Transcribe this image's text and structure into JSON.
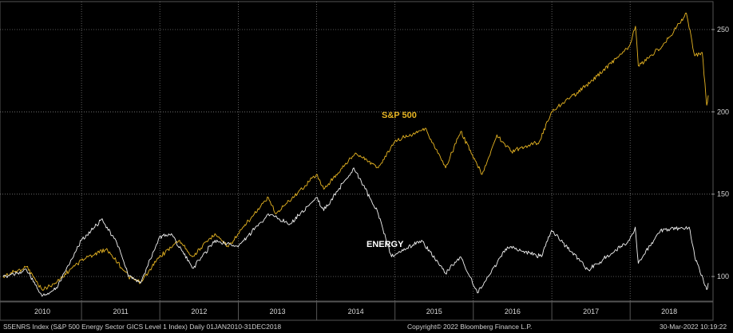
{
  "chart_data": {
    "type": "line",
    "title": "",
    "xlabel": "",
    "ylabel": "",
    "ylim": [
      86,
      266
    ],
    "y_ticks": [
      100,
      150,
      200,
      250
    ],
    "x_range": [
      "2010-01-01",
      "2018-12-31"
    ],
    "x_tick_labels": [
      "2010",
      "2011",
      "2012",
      "2013",
      "2014",
      "2015",
      "2016",
      "2017",
      "2018"
    ],
    "grid": true,
    "series": [
      {
        "name": "S&P 500",
        "color": "#e6b422",
        "points": [
          [
            "2010-01-01",
            100
          ],
          [
            "2010-04-20",
            106
          ],
          [
            "2010-07-01",
            92
          ],
          [
            "2010-09-01",
            96
          ],
          [
            "2010-12-31",
            110
          ],
          [
            "2011-04-29",
            117
          ],
          [
            "2011-08-08",
            100
          ],
          [
            "2011-10-03",
            96
          ],
          [
            "2011-12-30",
            112
          ],
          [
            "2012-04-02",
            122
          ],
          [
            "2012-06-01",
            112
          ],
          [
            "2012-09-14",
            126
          ],
          [
            "2012-11-15",
            118
          ],
          [
            "2012-12-31",
            126
          ],
          [
            "2013-05-21",
            148
          ],
          [
            "2013-06-24",
            138
          ],
          [
            "2013-12-31",
            162
          ],
          [
            "2014-02-03",
            153
          ],
          [
            "2014-06-30",
            175
          ],
          [
            "2014-10-15",
            166
          ],
          [
            "2014-12-31",
            182
          ],
          [
            "2015-05-21",
            190
          ],
          [
            "2015-08-25",
            166
          ],
          [
            "2015-11-03",
            188
          ],
          [
            "2016-02-11",
            162
          ],
          [
            "2016-04-20",
            186
          ],
          [
            "2016-06-27",
            176
          ],
          [
            "2016-11-04",
            182
          ],
          [
            "2016-12-30",
            200
          ],
          [
            "2017-06-30",
            218
          ],
          [
            "2017-12-29",
            240
          ],
          [
            "2018-01-26",
            252
          ],
          [
            "2018-02-08",
            228
          ],
          [
            "2018-06-01",
            240
          ],
          [
            "2018-09-20",
            260
          ],
          [
            "2018-10-29",
            234
          ],
          [
            "2018-12-03",
            236
          ],
          [
            "2018-12-24",
            204
          ],
          [
            "2018-12-31",
            210
          ]
        ]
      },
      {
        "name": "ENERGY",
        "color": "#f2f2f2",
        "points": [
          [
            "2010-01-01",
            100
          ],
          [
            "2010-04-20",
            104
          ],
          [
            "2010-07-01",
            88
          ],
          [
            "2010-09-01",
            92
          ],
          [
            "2010-12-31",
            122
          ],
          [
            "2011-04-08",
            135
          ],
          [
            "2011-06-24",
            118
          ],
          [
            "2011-08-08",
            100
          ],
          [
            "2011-10-03",
            96
          ],
          [
            "2011-12-30",
            124
          ],
          [
            "2012-02-24",
            126
          ],
          [
            "2012-06-01",
            105
          ],
          [
            "2012-09-14",
            122
          ],
          [
            "2012-12-31",
            118
          ],
          [
            "2013-05-21",
            138
          ],
          [
            "2013-08-30",
            132
          ],
          [
            "2013-12-31",
            148
          ],
          [
            "2014-02-03",
            140
          ],
          [
            "2014-06-23",
            166
          ],
          [
            "2014-10-15",
            138
          ],
          [
            "2014-12-16",
            112
          ],
          [
            "2015-05-05",
            122
          ],
          [
            "2015-08-24",
            102
          ],
          [
            "2015-11-03",
            112
          ],
          [
            "2016-01-20",
            90
          ],
          [
            "2016-06-08",
            118
          ],
          [
            "2016-11-14",
            112
          ],
          [
            "2016-12-30",
            128
          ],
          [
            "2017-06-21",
            104
          ],
          [
            "2017-12-29",
            122
          ],
          [
            "2018-01-25",
            130
          ],
          [
            "2018-02-08",
            108
          ],
          [
            "2018-05-22",
            128
          ],
          [
            "2018-10-03",
            130
          ],
          [
            "2018-10-29",
            112
          ],
          [
            "2018-12-24",
            92
          ],
          [
            "2018-12-31",
            96
          ]
        ]
      }
    ]
  },
  "footer": {
    "left": "S5ENRS Index (S&P 500 Energy Sector GICS Level 1 Index)  Daily 01JAN2010-31DEC2018",
    "center": "Copyright© 2022 Bloomberg Finance L.P.",
    "right": "30-Mar-2022 10:19:22"
  }
}
